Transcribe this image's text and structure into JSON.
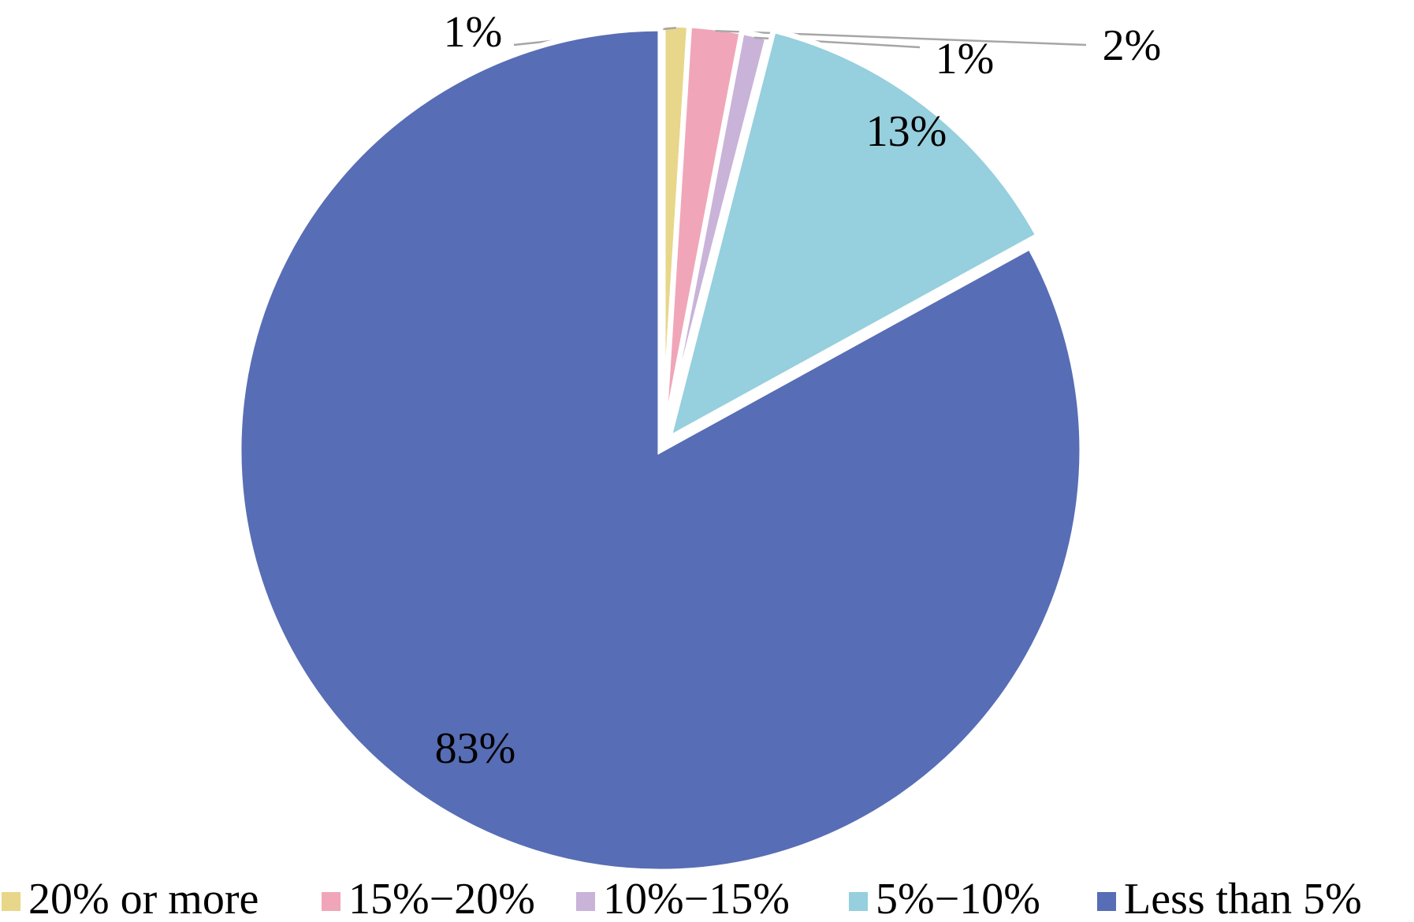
{
  "chart_data": {
    "type": "pie",
    "categories": [
      "20% or more",
      "15%−20%",
      "10%−15%",
      "5%−10%",
      "Less than 5%"
    ],
    "values": [
      1,
      2,
      1,
      13,
      83
    ],
    "value_labels": [
      "1%",
      "2%",
      "1%",
      "13%",
      "83%"
    ],
    "colors": [
      "#e8d68a",
      "#f0a6b8",
      "#c9b3d9",
      "#96cfdd",
      "#576db5"
    ],
    "legend": "bottom"
  }
}
